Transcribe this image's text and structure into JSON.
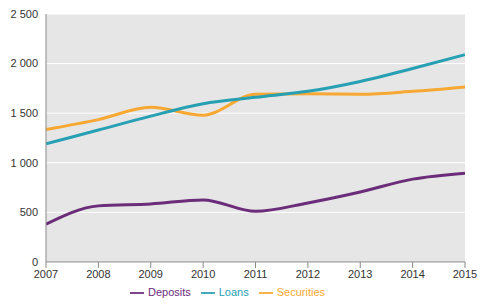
{
  "chart_data": {
    "type": "line",
    "x": [
      2007,
      2008,
      2009,
      2010,
      2011,
      2012,
      2013,
      2014,
      2015
    ],
    "xlim": [
      2007,
      2015
    ],
    "xticks": [
      2007,
      2008,
      2009,
      2010,
      2011,
      2012,
      2013,
      2014,
      2015
    ],
    "ylim": [
      0,
      2500
    ],
    "yticks": [
      0,
      500,
      {
        "value": 1000,
        "label": "1 000"
      },
      {
        "value": 1500,
        "label": "1 500"
      },
      {
        "value": 2000,
        "label": "2 000"
      },
      {
        "value": 2500,
        "label": "2 500"
      }
    ],
    "grid": true,
    "legend": "bottom",
    "series": [
      {
        "name": "Deposits",
        "color": "#6b2c7a",
        "values": [
          380,
          565,
          585,
          625,
          510,
          595,
          705,
          835,
          895
        ]
      },
      {
        "name": "Securities",
        "color": "#f7a833",
        "values": [
          1335,
          1435,
          1560,
          1480,
          1690,
          1695,
          1690,
          1720,
          1765
        ]
      },
      {
        "name": "Loans",
        "color": "#27a0b3",
        "values": [
          1190,
          1330,
          1470,
          1595,
          1660,
          1720,
          1820,
          1950,
          2090
        ]
      }
    ]
  }
}
